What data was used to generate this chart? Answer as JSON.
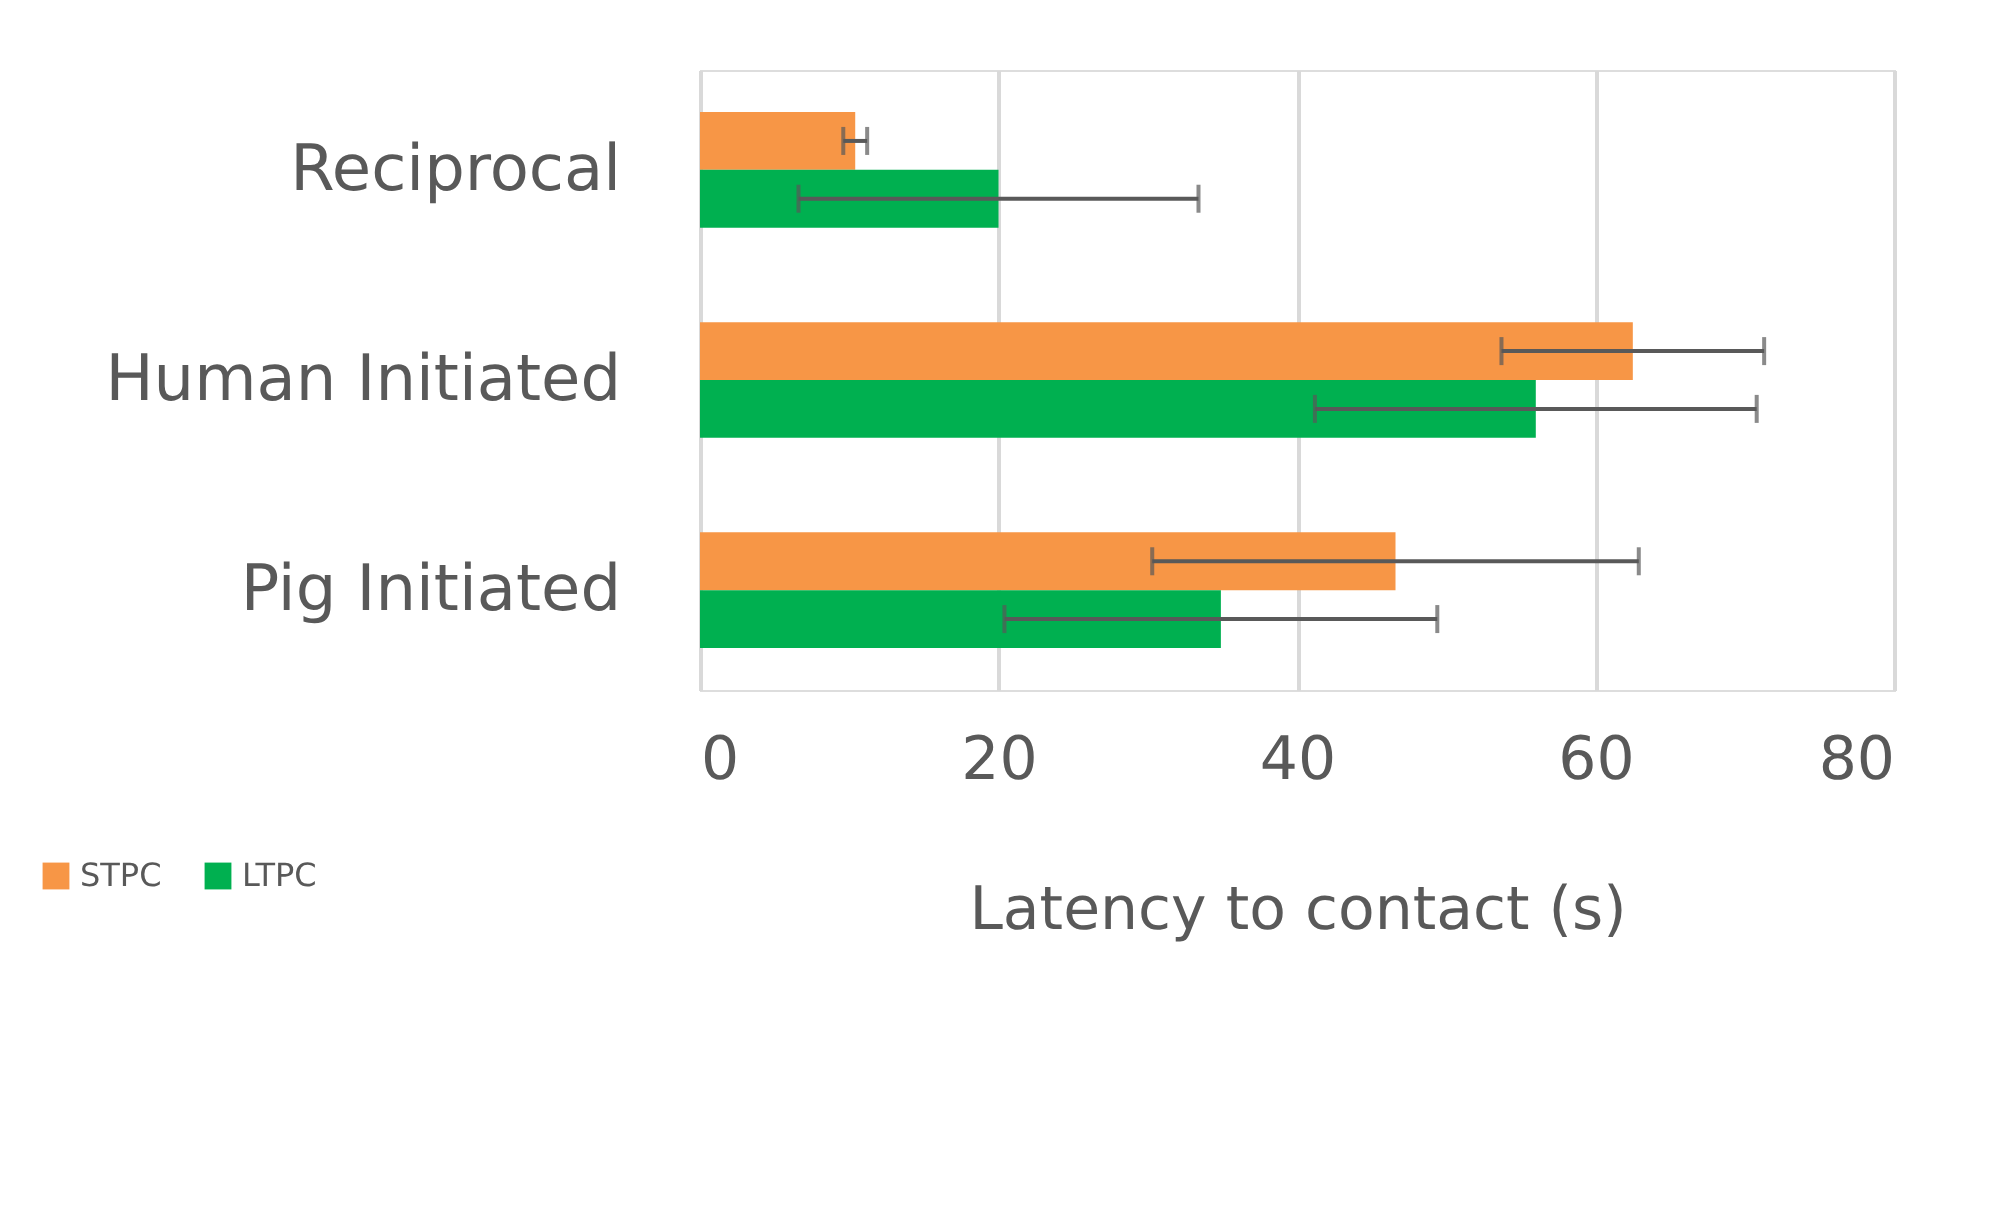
{
  "chart_data": {
    "type": "bar",
    "orientation": "horizontal",
    "categories": [
      "Reciprocal",
      "Human Initiated",
      "Pig Initiated"
    ],
    "series": [
      {
        "name": "STPC",
        "color": "#f79646",
        "values": [
          10.4,
          62.5,
          46.6
        ],
        "errors": [
          0.8,
          8.8,
          16.3
        ]
      },
      {
        "name": "LTPC",
        "color": "#00b050",
        "values": [
          20,
          56.0,
          34.9
        ],
        "errors": [
          13.4,
          14.8,
          14.5
        ]
      }
    ],
    "xlabel": "Latency to contact (s)",
    "xlim": [
      0,
      80
    ],
    "xticks": [
      0,
      20,
      40,
      60,
      80
    ],
    "grid": "x",
    "legend": "bottom left"
  }
}
